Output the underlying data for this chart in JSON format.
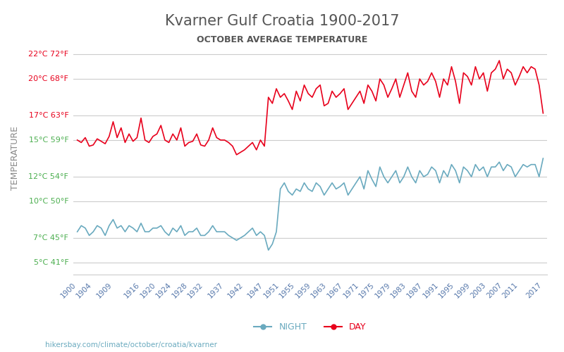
{
  "title": "Kvarner Gulf Croatia 1900-2017",
  "subtitle": "OCTOBER AVERAGE TEMPERATURE",
  "ylabel": "TEMPERATURE",
  "xlabel": "",
  "website": "hikersbay.com/climate/october/croatia/kvarner",
  "yticks_celsius": [
    5,
    7,
    10,
    12,
    15,
    17,
    20,
    22
  ],
  "yticks_fahrenheit": [
    41,
    45,
    50,
    54,
    59,
    63,
    68,
    72
  ],
  "ylim": [
    4,
    23
  ],
  "xticks": [
    1900,
    1904,
    1909,
    1916,
    1920,
    1924,
    1928,
    1932,
    1937,
    1942,
    1947,
    1951,
    1955,
    1959,
    1963,
    1967,
    1971,
    1975,
    1979,
    1983,
    1987,
    1991,
    1995,
    1999,
    2003,
    2007,
    2011,
    2017
  ],
  "xlim": [
    1899,
    2018
  ],
  "day_color": "#e8001c",
  "night_color": "#6aaabf",
  "grid_color": "#cccccc",
  "title_color": "#555555",
  "subtitle_color": "#555555",
  "ylabel_color": "#888888",
  "ytick_red_color": "#e8001c",
  "ytick_green_color": "#4caf50",
  "xtick_color": "#5577aa",
  "background_color": "#ffffff",
  "years": [
    1900,
    1901,
    1902,
    1903,
    1904,
    1905,
    1906,
    1907,
    1908,
    1909,
    1910,
    1911,
    1912,
    1913,
    1914,
    1915,
    1916,
    1917,
    1918,
    1919,
    1920,
    1921,
    1922,
    1923,
    1924,
    1925,
    1926,
    1927,
    1928,
    1929,
    1930,
    1931,
    1932,
    1933,
    1934,
    1935,
    1936,
    1937,
    1938,
    1939,
    1940,
    1941,
    1942,
    1943,
    1944,
    1945,
    1946,
    1947,
    1948,
    1949,
    1950,
    1951,
    1952,
    1953,
    1954,
    1955,
    1956,
    1957,
    1958,
    1959,
    1960,
    1961,
    1962,
    1963,
    1964,
    1965,
    1966,
    1967,
    1968,
    1969,
    1970,
    1971,
    1972,
    1973,
    1974,
    1975,
    1976,
    1977,
    1978,
    1979,
    1980,
    1981,
    1982,
    1983,
    1984,
    1985,
    1986,
    1987,
    1988,
    1989,
    1990,
    1991,
    1992,
    1993,
    1994,
    1995,
    1996,
    1997,
    1998,
    1999,
    2000,
    2001,
    2002,
    2003,
    2004,
    2005,
    2006,
    2007,
    2008,
    2009,
    2010,
    2011,
    2012,
    2013,
    2014,
    2015,
    2016,
    2017
  ],
  "day_temps": [
    15.0,
    14.8,
    15.2,
    14.5,
    14.6,
    15.1,
    14.9,
    14.7,
    15.3,
    16.5,
    15.2,
    16.0,
    14.8,
    15.5,
    14.9,
    15.2,
    16.8,
    15.0,
    14.8,
    15.3,
    15.5,
    16.2,
    15.0,
    14.8,
    15.5,
    15.0,
    16.0,
    14.5,
    14.8,
    14.9,
    15.5,
    14.6,
    14.5,
    15.0,
    16.0,
    15.2,
    15.0,
    15.0,
    14.8,
    14.5,
    13.8,
    14.0,
    14.2,
    14.5,
    14.8,
    14.2,
    15.0,
    14.5,
    18.5,
    18.0,
    19.2,
    18.5,
    18.8,
    18.2,
    17.5,
    19.0,
    18.2,
    19.5,
    18.8,
    18.5,
    19.2,
    19.5,
    17.8,
    18.0,
    19.0,
    18.5,
    18.8,
    19.2,
    17.5,
    18.0,
    18.5,
    19.0,
    18.0,
    19.5,
    19.0,
    18.2,
    20.0,
    19.5,
    18.5,
    19.2,
    20.0,
    18.5,
    19.5,
    20.5,
    19.0,
    18.5,
    20.0,
    19.5,
    19.8,
    20.5,
    19.8,
    18.5,
    20.0,
    19.5,
    21.0,
    19.8,
    18.0,
    20.5,
    20.2,
    19.5,
    21.0,
    20.0,
    20.5,
    19.0,
    20.5,
    20.8,
    21.5,
    20.0,
    20.8,
    20.5,
    19.5,
    20.2,
    21.0,
    20.5,
    21.0,
    20.8,
    19.5,
    17.2
  ],
  "night_temps": [
    7.5,
    8.0,
    7.8,
    7.2,
    7.5,
    8.0,
    7.8,
    7.2,
    8.0,
    8.5,
    7.8,
    8.0,
    7.5,
    8.0,
    7.8,
    7.5,
    8.2,
    7.5,
    7.5,
    7.8,
    7.8,
    8.0,
    7.5,
    7.2,
    7.8,
    7.5,
    8.0,
    7.2,
    7.5,
    7.5,
    7.8,
    7.2,
    7.2,
    7.5,
    8.0,
    7.5,
    7.5,
    7.5,
    7.2,
    7.0,
    6.8,
    7.0,
    7.2,
    7.5,
    7.8,
    7.2,
    7.5,
    7.2,
    6.0,
    6.5,
    7.5,
    11.0,
    11.5,
    10.8,
    10.5,
    11.0,
    10.8,
    11.5,
    11.0,
    10.8,
    11.5,
    11.2,
    10.5,
    11.0,
    11.5,
    11.0,
    11.2,
    11.5,
    10.5,
    11.0,
    11.5,
    12.0,
    11.0,
    12.5,
    11.8,
    11.2,
    12.8,
    12.0,
    11.5,
    12.0,
    12.5,
    11.5,
    12.0,
    12.8,
    12.0,
    11.5,
    12.5,
    12.0,
    12.2,
    12.8,
    12.5,
    11.5,
    12.5,
    12.0,
    13.0,
    12.5,
    11.5,
    12.8,
    12.5,
    12.0,
    13.0,
    12.5,
    12.8,
    12.0,
    12.8,
    12.8,
    13.2,
    12.5,
    13.0,
    12.8,
    12.0,
    12.5,
    13.0,
    12.8,
    13.0,
    13.0,
    12.0,
    13.5
  ]
}
